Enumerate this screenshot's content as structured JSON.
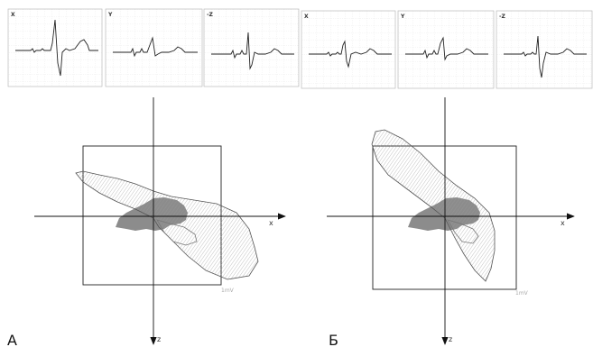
{
  "traces": [
    {
      "lead": "X"
    },
    {
      "lead": "Y"
    },
    {
      "lead": "-Z"
    },
    {
      "lead": "X"
    },
    {
      "lead": "Y"
    },
    {
      "lead": "-Z"
    }
  ],
  "panels": [
    {
      "label": "A",
      "x_axis": "x",
      "z_axis": "z",
      "scale": "1mV"
    },
    {
      "label": "Б",
      "x_axis": "x",
      "z_axis": "z",
      "scale": "1mV"
    }
  ]
}
